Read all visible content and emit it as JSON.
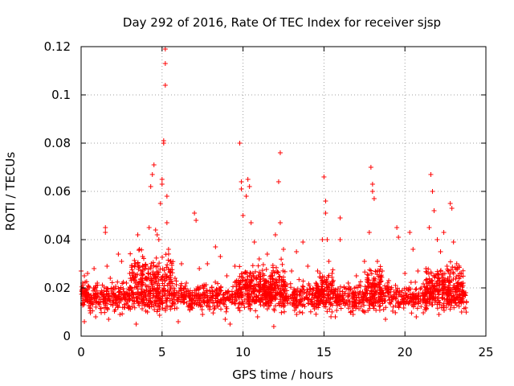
{
  "chart_data": {
    "type": "scatter",
    "title": "Day 292 of 2016, Rate Of TEC Index for receiver sjsp",
    "xlabel": "GPS time / hours",
    "ylabel": "ROTI / TECUs",
    "xlim": [
      0,
      25
    ],
    "ylim": [
      0,
      0.12
    ],
    "xticks": [
      0,
      5,
      10,
      15,
      20,
      25
    ],
    "yticks": [
      0,
      0.02,
      0.04,
      0.06,
      0.08,
      0.1,
      0.12
    ],
    "xtick_labels": [
      "0",
      "5",
      "10",
      "15",
      "20",
      "25"
    ],
    "ytick_labels": [
      "0",
      "0.02",
      "0.04",
      "0.06",
      "0.08",
      "0.1",
      "0.12"
    ],
    "grid": true,
    "marker": "+",
    "marker_color": "#ff0000",
    "series": [
      {
        "name": "ROTI",
        "color": "#ff0000",
        "points": [
          [
            0.0,
            0.027
          ],
          [
            0.1,
            0.022
          ],
          [
            0.2,
            0.025
          ],
          [
            0.3,
            0.018
          ],
          [
            0.4,
            0.026
          ],
          [
            0.5,
            0.02
          ],
          [
            0.6,
            0.014
          ],
          [
            0.8,
            0.028
          ],
          [
            1.0,
            0.022
          ],
          [
            1.2,
            0.018
          ],
          [
            1.5,
            0.045
          ],
          [
            1.5,
            0.043
          ],
          [
            1.6,
            0.029
          ],
          [
            1.8,
            0.024
          ],
          [
            2.0,
            0.02
          ],
          [
            2.3,
            0.034
          ],
          [
            2.5,
            0.031
          ],
          [
            2.8,
            0.022
          ],
          [
            3.0,
            0.026
          ],
          [
            3.3,
            0.029
          ],
          [
            3.5,
            0.042
          ],
          [
            3.6,
            0.036
          ],
          [
            3.8,
            0.033
          ],
          [
            4.0,
            0.029
          ],
          [
            4.2,
            0.045
          ],
          [
            4.3,
            0.062
          ],
          [
            4.4,
            0.067
          ],
          [
            4.5,
            0.071
          ],
          [
            4.6,
            0.044
          ],
          [
            4.7,
            0.042
          ],
          [
            4.8,
            0.04
          ],
          [
            4.9,
            0.055
          ],
          [
            5.0,
            0.065
          ],
          [
            5.0,
            0.063
          ],
          [
            5.1,
            0.081
          ],
          [
            5.1,
            0.08
          ],
          [
            5.2,
            0.104
          ],
          [
            5.2,
            0.113
          ],
          [
            5.2,
            0.119
          ],
          [
            5.3,
            0.058
          ],
          [
            5.3,
            0.047
          ],
          [
            5.4,
            0.036
          ],
          [
            5.5,
            0.031
          ],
          [
            5.8,
            0.024
          ],
          [
            6.2,
            0.03
          ],
          [
            6.5,
            0.022
          ],
          [
            7.0,
            0.051
          ],
          [
            7.1,
            0.048
          ],
          [
            7.3,
            0.028
          ],
          [
            7.8,
            0.03
          ],
          [
            8.3,
            0.037
          ],
          [
            8.6,
            0.033
          ],
          [
            9.0,
            0.025
          ],
          [
            9.5,
            0.029
          ],
          [
            9.8,
            0.08
          ],
          [
            9.9,
            0.064
          ],
          [
            9.9,
            0.061
          ],
          [
            10.0,
            0.05
          ],
          [
            10.2,
            0.058
          ],
          [
            10.3,
            0.065
          ],
          [
            10.4,
            0.062
          ],
          [
            10.5,
            0.047
          ],
          [
            10.7,
            0.039
          ],
          [
            11.0,
            0.032
          ],
          [
            11.5,
            0.034
          ],
          [
            12.0,
            0.042
          ],
          [
            12.2,
            0.064
          ],
          [
            12.3,
            0.076
          ],
          [
            12.3,
            0.047
          ],
          [
            12.5,
            0.036
          ],
          [
            13.0,
            0.027
          ],
          [
            13.3,
            0.035
          ],
          [
            13.7,
            0.039
          ],
          [
            14.0,
            0.029
          ],
          [
            14.5,
            0.022
          ],
          [
            14.9,
            0.04
          ],
          [
            15.0,
            0.066
          ],
          [
            15.1,
            0.056
          ],
          [
            15.1,
            0.051
          ],
          [
            15.2,
            0.04
          ],
          [
            15.3,
            0.031
          ],
          [
            15.5,
            0.026
          ],
          [
            16.0,
            0.049
          ],
          [
            16.0,
            0.04
          ],
          [
            16.5,
            0.022
          ],
          [
            17.0,
            0.025
          ],
          [
            17.5,
            0.031
          ],
          [
            17.8,
            0.043
          ],
          [
            17.9,
            0.07
          ],
          [
            18.0,
            0.063
          ],
          [
            18.0,
            0.06
          ],
          [
            18.1,
            0.057
          ],
          [
            18.3,
            0.031
          ],
          [
            18.6,
            0.027
          ],
          [
            19.0,
            0.023
          ],
          [
            19.5,
            0.045
          ],
          [
            19.6,
            0.041
          ],
          [
            20.0,
            0.026
          ],
          [
            20.3,
            0.043
          ],
          [
            20.5,
            0.036
          ],
          [
            20.8,
            0.027
          ],
          [
            21.0,
            0.02
          ],
          [
            21.3,
            0.028
          ],
          [
            21.5,
            0.045
          ],
          [
            21.6,
            0.067
          ],
          [
            21.7,
            0.06
          ],
          [
            21.8,
            0.052
          ],
          [
            22.0,
            0.04
          ],
          [
            22.2,
            0.035
          ],
          [
            22.4,
            0.043
          ],
          [
            22.6,
            0.029
          ],
          [
            22.8,
            0.055
          ],
          [
            22.9,
            0.053
          ],
          [
            23.0,
            0.039
          ],
          [
            23.2,
            0.03
          ],
          [
            23.4,
            0.026
          ],
          [
            23.6,
            0.022
          ],
          [
            23.8,
            0.014
          ],
          [
            0.2,
            0.006
          ],
          [
            0.9,
            0.008
          ],
          [
            1.7,
            0.007
          ],
          [
            2.4,
            0.009
          ],
          [
            3.4,
            0.005
          ],
          [
            4.1,
            0.01
          ],
          [
            6.0,
            0.006
          ],
          [
            7.5,
            0.009
          ],
          [
            8.9,
            0.007
          ],
          [
            9.2,
            0.005
          ],
          [
            10.9,
            0.008
          ],
          [
            11.9,
            0.004
          ],
          [
            13.5,
            0.01
          ],
          [
            15.7,
            0.008
          ],
          [
            16.8,
            0.009
          ],
          [
            18.8,
            0.007
          ],
          [
            20.7,
            0.008
          ],
          [
            22.1,
            0.009
          ],
          [
            23.5,
            0.01
          ]
        ]
      }
    ],
    "dense_bands": [
      {
        "x_from": 0.0,
        "x_to": 23.8,
        "y_center": 0.016,
        "y_spread": 0.005
      },
      {
        "x_from": 3.0,
        "x_to": 5.7,
        "y_center": 0.025,
        "y_spread": 0.008
      },
      {
        "x_from": 9.5,
        "x_to": 12.6,
        "y_center": 0.022,
        "y_spread": 0.007
      },
      {
        "x_from": 14.5,
        "x_to": 15.6,
        "y_center": 0.02,
        "y_spread": 0.006
      },
      {
        "x_from": 17.5,
        "x_to": 18.6,
        "y_center": 0.022,
        "y_spread": 0.006
      },
      {
        "x_from": 21.2,
        "x_to": 23.6,
        "y_center": 0.022,
        "y_spread": 0.007
      }
    ]
  }
}
